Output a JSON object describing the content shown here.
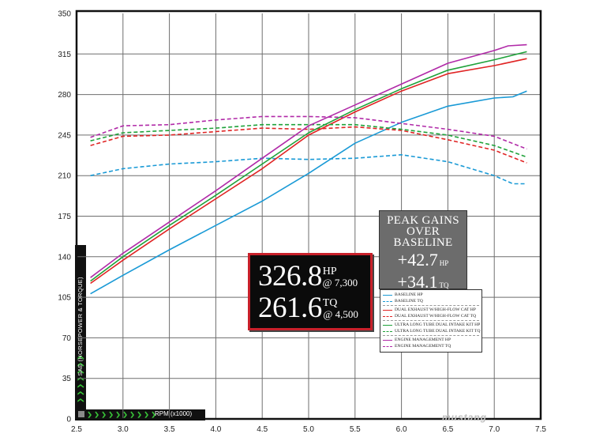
{
  "chart_data": {
    "type": "line",
    "xlabel": "RPM (x1000)",
    "ylabel": "SAE (HORSEPOWER & TORQUE)",
    "xlim": [
      2.5,
      7.5
    ],
    "ylim": [
      0,
      350
    ],
    "xticks": [
      "2.5",
      "3.0",
      "3.5",
      "4.0",
      "4.5",
      "5.0",
      "5.5",
      "6.0",
      "6.5",
      "7.0",
      "7.5"
    ],
    "yticks": [
      "0",
      "35",
      "70",
      "105",
      "140",
      "175",
      "210",
      "245",
      "280",
      "315",
      "350"
    ],
    "grid": true,
    "legend_position": "right",
    "series": [
      {
        "name": "BASELINE HP",
        "color": "#1a9ad6",
        "dash": "solid",
        "x": [
          2.65,
          3.0,
          3.5,
          4.0,
          4.5,
          5.0,
          5.5,
          6.0,
          6.5,
          7.0,
          7.2,
          7.35
        ],
        "y": [
          108,
          124,
          146,
          167,
          188,
          212,
          238,
          256,
          270,
          277,
          278,
          283
        ]
      },
      {
        "name": "BASELINE TQ",
        "color": "#1a9ad6",
        "dash": "dashed",
        "x": [
          2.65,
          3.0,
          3.5,
          4.0,
          4.5,
          5.0,
          5.5,
          6.0,
          6.5,
          7.0,
          7.2,
          7.35
        ],
        "y": [
          210,
          216,
          220,
          222,
          225,
          224,
          225,
          228,
          222,
          210,
          203,
          203
        ]
      },
      {
        "name": "DUAL EXHAUST W/HIGH-FLOW CAT HP",
        "color": "#e02424",
        "dash": "solid",
        "x": [
          2.65,
          3.0,
          3.5,
          4.0,
          4.5,
          5.0,
          5.5,
          6.0,
          6.5,
          7.0,
          7.35
        ],
        "y": [
          117,
          137,
          164,
          190,
          216,
          245,
          265,
          283,
          298,
          305,
          311
        ]
      },
      {
        "name": "DUAL EXHAUST W/HIGH-FLOW CAT TQ",
        "color": "#e02424",
        "dash": "dashed",
        "x": [
          2.65,
          3.0,
          3.5,
          4.0,
          4.5,
          5.0,
          5.5,
          6.0,
          6.5,
          7.0,
          7.35
        ],
        "y": [
          236,
          244,
          245,
          248,
          251,
          250,
          252,
          249,
          241,
          232,
          221
        ]
      },
      {
        "name": "ULTRA LONG TUBE DUAL INTAKE KIT HP",
        "color": "#1fa23a",
        "dash": "solid",
        "x": [
          2.65,
          3.0,
          3.5,
          4.0,
          4.5,
          5.0,
          5.5,
          6.0,
          6.5,
          7.0,
          7.35
        ],
        "y": [
          119,
          140,
          167,
          193,
          220,
          247,
          267,
          285,
          301,
          310,
          317
        ]
      },
      {
        "name": "ULTRA LONG TUBE DUAL INTAKE KIT TQ",
        "color": "#1fa23a",
        "dash": "dashed",
        "x": [
          2.65,
          3.0,
          3.5,
          4.0,
          4.5,
          5.0,
          5.5,
          6.0,
          6.5,
          7.0,
          7.35
        ],
        "y": [
          240,
          247,
          249,
          251,
          254,
          254,
          254,
          250,
          245,
          236,
          226
        ]
      },
      {
        "name": "ENGINE MANAGEMENT HP",
        "color": "#b12aa8",
        "dash": "solid",
        "x": [
          2.65,
          3.0,
          3.5,
          4.0,
          4.5,
          5.0,
          5.5,
          6.0,
          6.5,
          7.0,
          7.15,
          7.35
        ],
        "y": [
          122,
          143,
          170,
          197,
          225,
          253,
          271,
          289,
          307,
          318,
          322,
          323
        ]
      },
      {
        "name": "ENGINE MANAGEMENT TQ",
        "color": "#b12aa8",
        "dash": "dashed",
        "x": [
          2.65,
          3.0,
          3.5,
          4.0,
          4.5,
          5.0,
          5.5,
          6.0,
          6.5,
          7.0,
          7.35
        ],
        "y": [
          243,
          253,
          254,
          258,
          261,
          261,
          260,
          255,
          250,
          244,
          233
        ]
      }
    ]
  },
  "peak_box": {
    "hp_value": "326.8",
    "hp_unit": "HP",
    "hp_rpm": "@ 7,300",
    "tq_value": "261.6",
    "tq_unit": "TQ",
    "tq_rpm": "@ 4,500"
  },
  "gains_box": {
    "title_1": "PEAK GAINS",
    "title_2": "OVER",
    "title_3": "BASELINE",
    "hp_gain": "+42.7",
    "hp_unit": "HP",
    "tq_gain": "+34.1",
    "tq_unit": "TQ"
  },
  "watermark": "mustang"
}
